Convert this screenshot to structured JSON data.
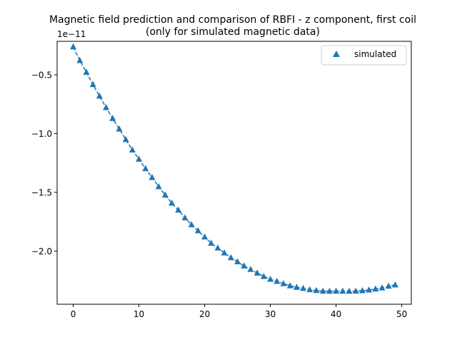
{
  "chart_data": {
    "type": "scatter",
    "title_line1": "Magnetic field prediction and comparison of RBFI - z component, first coil",
    "title_line2": "(only for simulated magnetic data)",
    "xlabel": "",
    "ylabel": "",
    "offset_text": "1e−11",
    "xlim": [
      -2.45,
      51.45
    ],
    "ylim": [
      -2.4519e-11,
      -2.156e-12
    ],
    "xticks": [
      0,
      10,
      20,
      30,
      40,
      50
    ],
    "yticks": [
      -2e-11,
      -1.5e-11,
      -1e-11,
      -5e-12
    ],
    "xtick_labels": [
      "0",
      "10",
      "20",
      "30",
      "40",
      "50"
    ],
    "ytick_labels": [
      "−2.0",
      "−1.5",
      "−1.0",
      "−0.5"
    ],
    "grid": false,
    "legend_position": "top-right",
    "color": "#1f77b4",
    "series": [
      {
        "name": "simulated",
        "marker": "triangle-up",
        "x": [
          0,
          1,
          2,
          3,
          4,
          5,
          6,
          7,
          8,
          9,
          10,
          11,
          12,
          13,
          14,
          15,
          16,
          17,
          18,
          19,
          20,
          21,
          22,
          23,
          24,
          25,
          26,
          27,
          28,
          29,
          30,
          31,
          32,
          33,
          34,
          35,
          36,
          37,
          38,
          39,
          40,
          41,
          42,
          43,
          44,
          45,
          46,
          47,
          48,
          49
        ],
        "y": [
          -2.625e-12,
          -3.795e-12,
          -4.781e-12,
          -5.832e-12,
          -6.818e-12,
          -7.791e-12,
          -8.717e-12,
          -9.619e-12,
          -1.0509e-11,
          -1.1399e-11,
          -1.2175e-11,
          -1.2989e-11,
          -1.3742e-11,
          -1.4517e-11,
          -1.5232e-11,
          -1.5923e-11,
          -1.6514e-11,
          -1.7167e-11,
          -1.7756e-11,
          -1.8272e-11,
          -1.8801e-11,
          -1.9331e-11,
          -1.9737e-11,
          -2.0157e-11,
          -2.0563e-11,
          -2.0907e-11,
          -2.1265e-11,
          -2.1558e-11,
          -2.1865e-11,
          -2.2152e-11,
          -2.2396e-11,
          -2.2574e-11,
          -2.2768e-11,
          -2.2953e-11,
          -2.3083e-11,
          -2.317e-11,
          -2.3281e-11,
          -2.3355e-11,
          -2.3404e-11,
          -2.3416e-11,
          -2.3404e-11,
          -2.3404e-11,
          -2.3416e-11,
          -2.3404e-11,
          -2.3368e-11,
          -2.3306e-11,
          -2.322e-11,
          -2.3132e-11,
          -2.2982e-11,
          -2.2872e-11
        ]
      }
    ],
    "trend_line": {
      "x": [
        0,
        1,
        2,
        3,
        4,
        5,
        6,
        7,
        8,
        9,
        10,
        11,
        12,
        13,
        14,
        15,
        16,
        17,
        18,
        19,
        20,
        21,
        22,
        23,
        24,
        25,
        26,
        27,
        28,
        29,
        30,
        31,
        32,
        33,
        34,
        35,
        36,
        37,
        38,
        39,
        40,
        41,
        42,
        43,
        44,
        45,
        46,
        47,
        48,
        49
      ],
      "y": [
        -2.625e-12,
        -3.795e-12,
        -4.781e-12,
        -5.832e-12,
        -6.818e-12,
        -7.791e-12,
        -8.717e-12,
        -9.619e-12,
        -1.0509e-11,
        -1.1399e-11,
        -1.2175e-11,
        -1.2989e-11,
        -1.3742e-11,
        -1.4517e-11,
        -1.5232e-11,
        -1.5923e-11,
        -1.6514e-11,
        -1.7167e-11,
        -1.7756e-11,
        -1.8272e-11,
        -1.8801e-11,
        -1.9331e-11,
        -1.9737e-11,
        -2.0157e-11,
        -2.0563e-11,
        -2.0907e-11,
        -2.1265e-11,
        -2.1558e-11,
        -2.1865e-11,
        -2.2152e-11,
        -2.2396e-11,
        -2.2574e-11,
        -2.2768e-11,
        -2.2953e-11,
        -2.3083e-11,
        -2.317e-11,
        -2.3281e-11,
        -2.3355e-11,
        -2.3404e-11,
        -2.3416e-11,
        -2.3404e-11,
        -2.3404e-11,
        -2.3416e-11,
        -2.3404e-11,
        -2.3368e-11,
        -2.3306e-11,
        -2.322e-11,
        -2.3132e-11,
        -2.2982e-11,
        -2.2872e-11
      ],
      "style": "dashed"
    }
  }
}
